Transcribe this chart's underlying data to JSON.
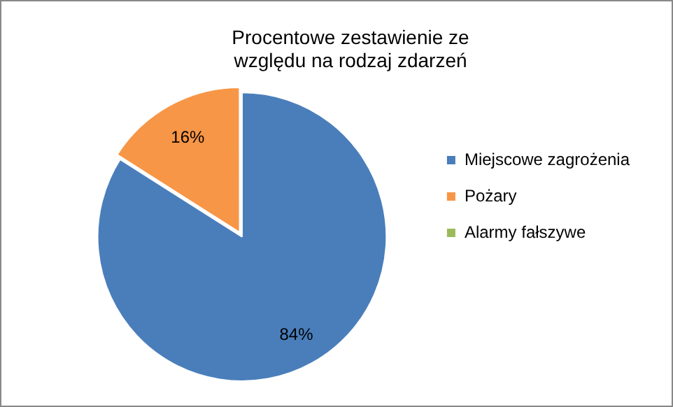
{
  "chart_data": {
    "type": "pie",
    "title": "Procentowe zestawienie ze względu na rodzaj zdarzeń",
    "categories": [
      "Miejscowe zagrożenia",
      "Pożary",
      "Alarmy fałszywe"
    ],
    "values": [
      84,
      16,
      0
    ],
    "colors": [
      "#4a7ebb",
      "#f79646",
      "#9bbb59"
    ],
    "value_labels": [
      "84%",
      "16%",
      null
    ],
    "legend": "right"
  }
}
